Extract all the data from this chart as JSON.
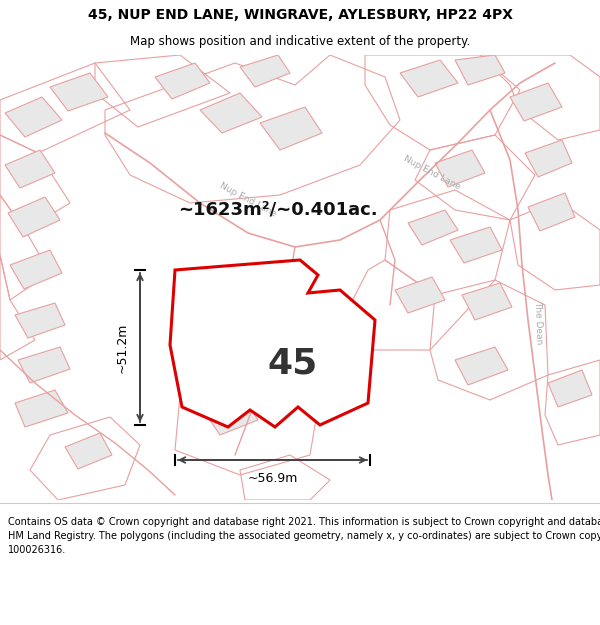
{
  "title_line1": "45, NUP END LANE, WINGRAVE, AYLESBURY, HP22 4PX",
  "title_line2": "Map shows position and indicative extent of the property.",
  "footer_lines": [
    "Contains OS data © Crown copyright and database right 2021. This information is subject to Crown copyright and database rights 2023 and is reproduced with the permission of",
    "HM Land Registry. The polygons (including the associated geometry, namely x, y co-ordinates) are subject to Crown copyright and database rights 2023 Ordnance Survey",
    "100026316."
  ],
  "area_text": "~1623m²/~0.401ac.",
  "label_45": "45",
  "dim_h": "~56.9m",
  "dim_v": "~51.2m",
  "map_bg": "#ffffff",
  "boundary_color": "#dd0000",
  "prop_fill": "#ffffff",
  "road_outline_color": "#e8a0a0",
  "road_label_color": "#aaaaaa",
  "building_fill": "#e8e8e8",
  "building_outline": "#e8a0a0"
}
